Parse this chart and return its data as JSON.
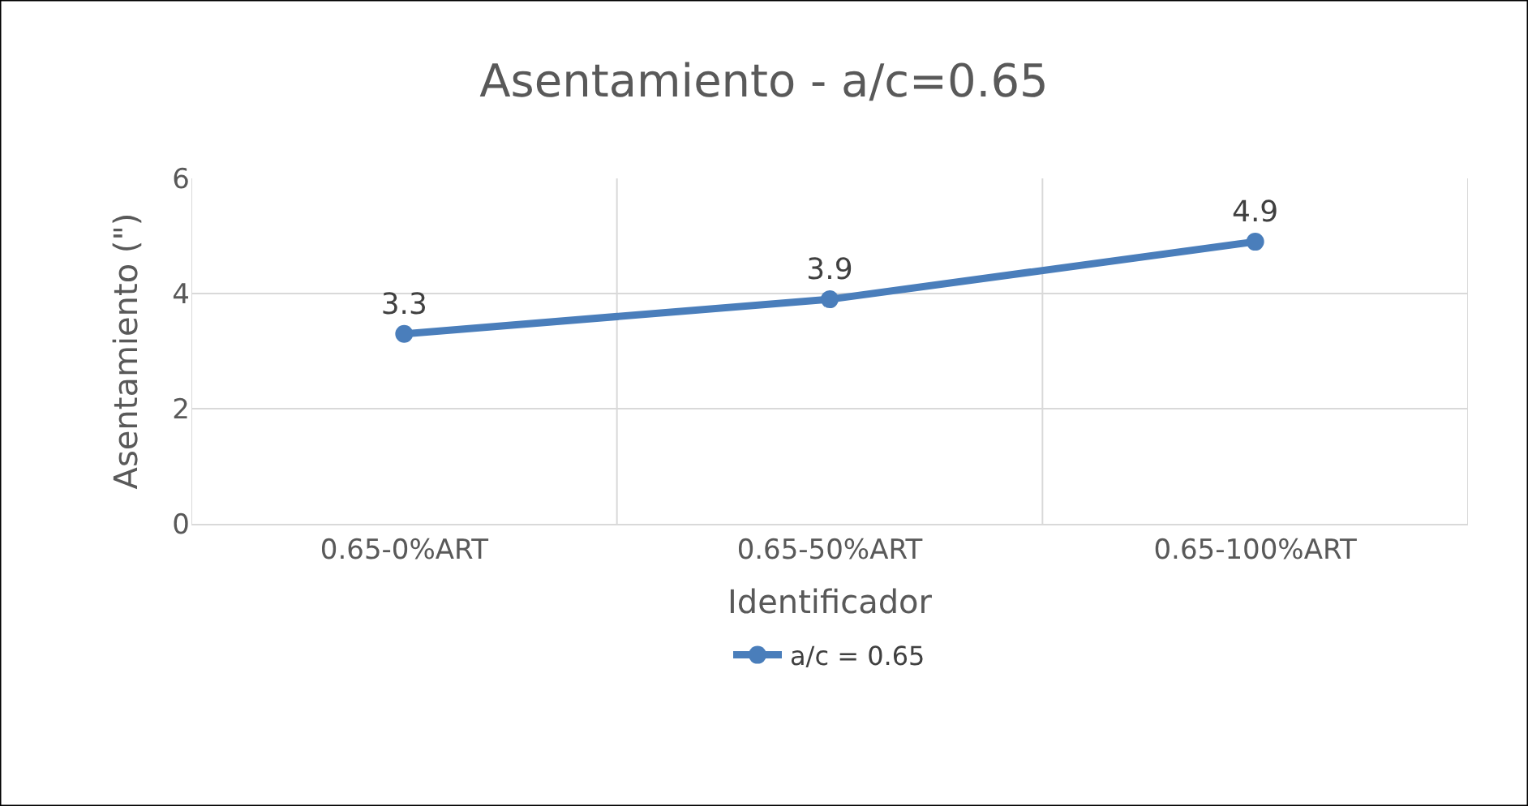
{
  "chart_data": {
    "type": "line",
    "title": "Asentamiento - a/c=0.65",
    "xlabel": "Identificador",
    "ylabel": "Asentamiento (\")",
    "categories": [
      "0.65-0%ART",
      "0.65-50%ART",
      "0.65-100%ART"
    ],
    "series": [
      {
        "name": "a/c = 0.65",
        "color": "#4a7ebb",
        "values": [
          3.3,
          3.9,
          4.9
        ]
      }
    ],
    "ylim": [
      0,
      6
    ],
    "yticks": [
      0,
      2,
      4,
      6
    ],
    "grid": true,
    "legend": "bottom",
    "marker": "circle",
    "line_style": "solid",
    "data_labels": true
  }
}
